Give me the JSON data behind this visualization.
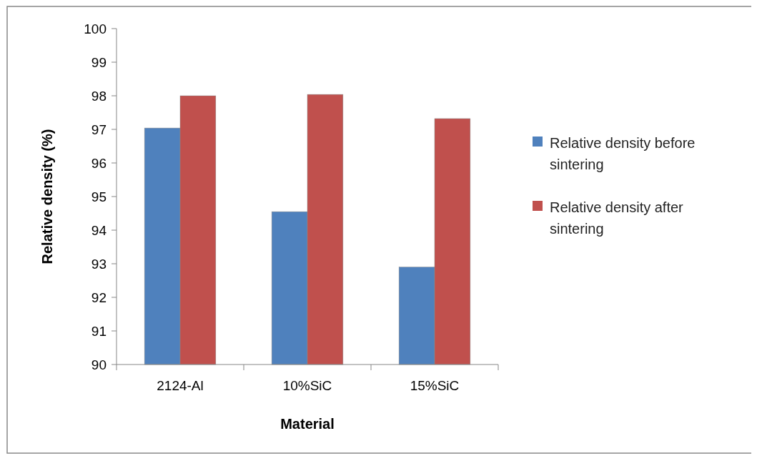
{
  "chart_data": {
    "type": "bar",
    "xlabel": "Material",
    "ylabel": "Relative density (%)",
    "categories": [
      "2124-Al",
      "10%SiC",
      "15%SiC"
    ],
    "series": [
      {
        "name": "Relative density before sintering",
        "color": "#4f81bd",
        "values": [
          97.04,
          94.55,
          92.9
        ]
      },
      {
        "name": "Relative density after sintering",
        "color": "#c0504d",
        "values": [
          98.0,
          98.04,
          97.32
        ]
      }
    ],
    "ylim": [
      90,
      100
    ],
    "yticks": [
      90,
      91,
      92,
      93,
      94,
      95,
      96,
      97,
      98,
      99,
      100
    ],
    "grid": false,
    "legend": "right"
  }
}
